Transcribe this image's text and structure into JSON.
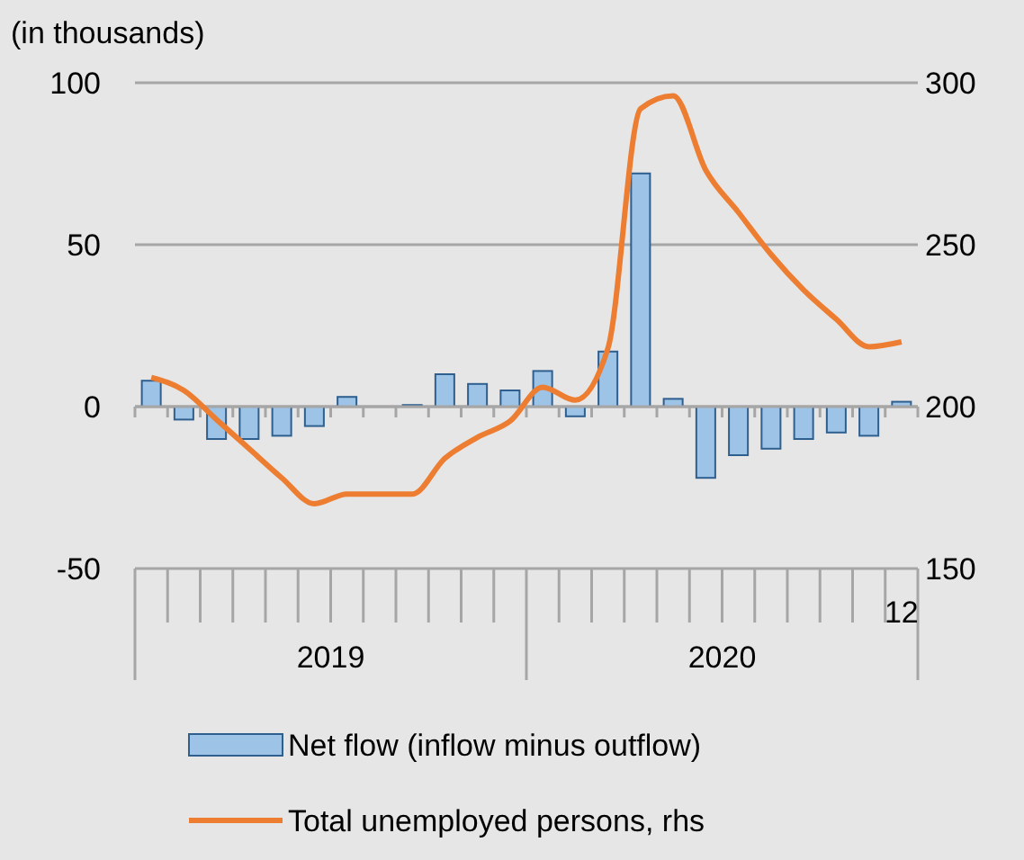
{
  "chart_data": {
    "type": "bar",
    "ylabel": "(in thousands)",
    "categories": [
      null,
      null,
      null,
      null,
      null,
      null,
      null,
      null,
      null,
      null,
      null,
      null,
      null,
      null,
      null,
      null,
      null,
      null,
      null,
      null,
      null,
      null,
      null,
      "12"
    ],
    "annotations": [
      "2019",
      "2020"
    ],
    "series": [
      {
        "name": "Net flow (inflow minus outflow)",
        "color": "#9dc3e6",
        "values": [
          8,
          -4,
          -10,
          -10,
          -9,
          -6,
          3,
          0,
          0.5,
          10,
          7,
          5,
          11,
          -3,
          17,
          72,
          2.4,
          -22,
          -15,
          -13,
          -10,
          -8,
          -9,
          1.5
        ]
      },
      {
        "name": "Total unemployed persons, rhs",
        "type": "line",
        "axis": "y2",
        "color": "#ed7d31",
        "values": [
          209,
          205,
          196,
          187,
          178,
          170,
          173,
          173,
          173,
          184,
          190.5,
          195.5,
          206,
          202,
          218,
          292,
          296,
          273,
          260,
          247,
          236,
          227,
          218.5,
          220
        ]
      }
    ],
    "ylim": [
      -50,
      100
    ],
    "yticks": [
      -50,
      0,
      50,
      100
    ],
    "y2lim": [
      150,
      300
    ],
    "y2ticks": [
      150,
      200,
      250,
      300
    ],
    "grid": "y",
    "legend": "bottom",
    "marker": "none",
    "line_style": "solid"
  }
}
